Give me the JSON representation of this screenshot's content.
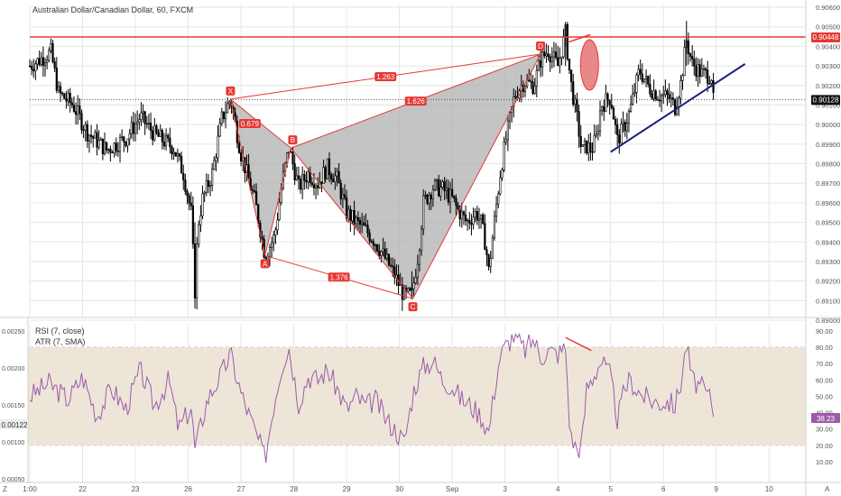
{
  "symbol_title": "Australian Dollar/Canadian Dollar, 60, FXCM",
  "colors": {
    "candle": "#000000",
    "grid": "#e6e6e6",
    "red": "#e53935",
    "pattern_fill": "#b0b0b0",
    "trendline": "#1a237e",
    "rsi_line": "#9c5aa8",
    "rsi_band": "#ede6d8",
    "price_label_bg": "#111111"
  },
  "chart_data": [
    {
      "type": "candlestick",
      "title": "Australian Dollar/Canadian Dollar, 60, FXCM",
      "y_ticks": [
        "0.90600",
        "0.90500",
        "0.90400",
        "0.90300",
        "0.90200",
        "0.90100",
        "0.90000",
        "0.89900",
        "0.89800",
        "0.89700",
        "0.89600",
        "0.89500",
        "0.89400",
        "0.89300",
        "0.89200",
        "0.89100",
        "0.89000"
      ],
      "ylim": [
        0.89,
        0.906
      ],
      "x_ticks": [
        "1:00",
        "22",
        "23",
        "26",
        "27",
        "28",
        "29",
        "30",
        "Sep",
        "3",
        "4",
        "5",
        "6",
        "9",
        "10"
      ],
      "x_tick_index": [
        0,
        55,
        110,
        165,
        220,
        275,
        330,
        385,
        440,
        495,
        550,
        605,
        660,
        715,
        770
      ],
      "close_path_knots": [
        [
          0,
          0.903
        ],
        [
          10,
          0.9033
        ],
        [
          22,
          0.9037
        ],
        [
          30,
          0.9016
        ],
        [
          45,
          0.901
        ],
        [
          60,
          0.8996
        ],
        [
          80,
          0.8987
        ],
        [
          100,
          0.8993
        ],
        [
          115,
          0.9004
        ],
        [
          130,
          0.8995
        ],
        [
          150,
          0.8988
        ],
        [
          160,
          0.8975
        ],
        [
          168,
          0.8955
        ],
        [
          172,
          0.8915
        ],
        [
          175,
          0.8948
        ],
        [
          180,
          0.8962
        ],
        [
          190,
          0.8975
        ],
        [
          200,
          0.9003
        ],
        [
          209,
          0.9013
        ],
        [
          220,
          0.8985
        ],
        [
          235,
          0.896
        ],
        [
          245,
          0.8933
        ],
        [
          255,
          0.8943
        ],
        [
          263,
          0.8971
        ],
        [
          270,
          0.8988
        ],
        [
          280,
          0.8968
        ],
        [
          290,
          0.8975
        ],
        [
          300,
          0.897
        ],
        [
          310,
          0.8978
        ],
        [
          320,
          0.8972
        ],
        [
          330,
          0.8955
        ],
        [
          340,
          0.895
        ],
        [
          350,
          0.8946
        ],
        [
          360,
          0.894
        ],
        [
          372,
          0.893
        ],
        [
          380,
          0.8923
        ],
        [
          390,
          0.8912
        ],
        [
          398,
          0.8913
        ],
        [
          405,
          0.8935
        ],
        [
          410,
          0.896
        ],
        [
          420,
          0.8968
        ],
        [
          430,
          0.8967
        ],
        [
          440,
          0.8962
        ],
        [
          445,
          0.8957
        ],
        [
          455,
          0.895
        ],
        [
          465,
          0.8955
        ],
        [
          470,
          0.895
        ],
        [
          475,
          0.8938
        ],
        [
          478,
          0.8925
        ],
        [
          485,
          0.8955
        ],
        [
          490,
          0.8975
        ],
        [
          495,
          0.899
        ],
        [
          505,
          0.9015
        ],
        [
          515,
          0.9022
        ],
        [
          525,
          0.902
        ],
        [
          532,
          0.9033
        ],
        [
          540,
          0.9038
        ],
        [
          550,
          0.903
        ],
        [
          558,
          0.9047
        ],
        [
          563,
          0.9023
        ],
        [
          570,
          0.9003
        ],
        [
          575,
          0.8986
        ],
        [
          580,
          0.8989
        ],
        [
          585,
          0.8987
        ],
        [
          590,
          0.8993
        ],
        [
          595,
          0.901
        ],
        [
          605,
          0.9014
        ],
        [
          612,
          0.8992
        ],
        [
          620,
          0.9
        ],
        [
          625,
          0.9007
        ],
        [
          635,
          0.9028
        ],
        [
          645,
          0.9019
        ],
        [
          655,
          0.9015
        ],
        [
          665,
          0.9014
        ],
        [
          672,
          0.9009
        ],
        [
          678,
          0.9021
        ],
        [
          684,
          0.9043
        ],
        [
          690,
          0.9031
        ],
        [
          700,
          0.9026
        ],
        [
          710,
          0.9025
        ],
        [
          712,
          0.9012
        ]
      ],
      "last_price": "0.90128",
      "marked_level": "0.90448",
      "harmonic_pattern": {
        "points": [
          {
            "label": "X",
            "index": 209,
            "price": 0.9013
          },
          {
            "label": "A",
            "index": 245,
            "price": 0.8933
          },
          {
            "label": "B",
            "index": 272,
            "price": 0.8988
          },
          {
            "label": "C",
            "index": 399,
            "price": 0.8911
          },
          {
            "label": "D",
            "index": 532,
            "price": 0.9036
          }
        ],
        "ratios": [
          "1.263",
          "0.679",
          "1.626",
          "1.376"
        ]
      }
    },
    {
      "type": "line",
      "legend": [
        "RSI (7, close)",
        "ATR (7, SMA)"
      ],
      "ylim": [
        0,
        90
      ],
      "bands": [
        20,
        80
      ],
      "y_ticks_right": [
        "90.00",
        "80.00",
        "70.00",
        "60.00",
        "50.00",
        "40.00",
        "30.00",
        "20.00",
        "10.00"
      ],
      "y_ticks_left": [
        "0.00250",
        "0.00200",
        "0.00150",
        "0.00100",
        "0.00050"
      ],
      "atr_value": "0.00122",
      "rsi_value": "38.23",
      "rsi_path_knots": [
        [
          0,
          50
        ],
        [
          20,
          58
        ],
        [
          40,
          48
        ],
        [
          55,
          62
        ],
        [
          70,
          38
        ],
        [
          85,
          55
        ],
        [
          100,
          42
        ],
        [
          115,
          66
        ],
        [
          130,
          44
        ],
        [
          145,
          60
        ],
        [
          155,
          30
        ],
        [
          168,
          43
        ],
        [
          172,
          18
        ],
        [
          185,
          48
        ],
        [
          200,
          64
        ],
        [
          209,
          76
        ],
        [
          220,
          52
        ],
        [
          235,
          28
        ],
        [
          245,
          12
        ],
        [
          255,
          48
        ],
        [
          263,
          70
        ],
        [
          270,
          80
        ],
        [
          280,
          46
        ],
        [
          290,
          62
        ],
        [
          300,
          60
        ],
        [
          310,
          66
        ],
        [
          320,
          55
        ],
        [
          330,
          42
        ],
        [
          340,
          50
        ],
        [
          350,
          44
        ],
        [
          360,
          48
        ],
        [
          372,
          35
        ],
        [
          380,
          30
        ],
        [
          390,
          22
        ],
        [
          400,
          54
        ],
        [
          410,
          68
        ],
        [
          420,
          72
        ],
        [
          430,
          60
        ],
        [
          440,
          56
        ],
        [
          450,
          48
        ],
        [
          460,
          44
        ],
        [
          470,
          38
        ],
        [
          478,
          28
        ],
        [
          485,
          58
        ],
        [
          490,
          75
        ],
        [
          495,
          80
        ],
        [
          505,
          88
        ],
        [
          515,
          78
        ],
        [
          525,
          85
        ],
        [
          532,
          74
        ],
        [
          540,
          78
        ],
        [
          550,
          76
        ],
        [
          558,
          80
        ],
        [
          563,
          25
        ],
        [
          570,
          18
        ],
        [
          575,
          20
        ],
        [
          580,
          55
        ],
        [
          585,
          60
        ],
        [
          590,
          66
        ],
        [
          595,
          72
        ],
        [
          605,
          62
        ],
        [
          612,
          36
        ],
        [
          620,
          55
        ],
        [
          625,
          60
        ],
        [
          635,
          52
        ],
        [
          645,
          48
        ],
        [
          655,
          46
        ],
        [
          665,
          47
        ],
        [
          672,
          44
        ],
        [
          678,
          58
        ],
        [
          684,
          82
        ],
        [
          690,
          60
        ],
        [
          700,
          55
        ],
        [
          710,
          48
        ],
        [
          712,
          38
        ]
      ]
    }
  ]
}
